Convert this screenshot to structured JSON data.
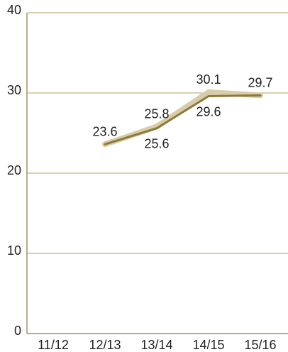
{
  "chart_data": {
    "type": "line",
    "categories": [
      "11/12",
      "12/13",
      "13/14",
      "14/15",
      "15/16"
    ],
    "ylim": [
      0,
      40
    ],
    "yticks": [
      0,
      10,
      20,
      30,
      40
    ],
    "grid": true,
    "legend": "none",
    "series": [
      {
        "values": [
          null,
          23.6,
          25.8,
          30.1,
          29.7
        ],
        "color": "#d9ccaa",
        "label_position": "above"
      },
      {
        "values": [
          null,
          23.6,
          25.6,
          29.6,
          29.7
        ],
        "color": "#8c7a3c",
        "label_position": "below"
      }
    ],
    "point_labels": [
      {
        "category": "12/13",
        "text": "23.6",
        "position": "above"
      },
      {
        "category": "13/14",
        "text": "25.8",
        "position": "above"
      },
      {
        "category": "13/14",
        "text": "25.6",
        "position": "below"
      },
      {
        "category": "14/15",
        "text": "30.1",
        "position": "above"
      },
      {
        "category": "14/15",
        "text": "29.6",
        "position": "below"
      },
      {
        "category": "15/16",
        "text": "29.7",
        "position": "above"
      }
    ],
    "colors": {
      "gridline": "#b3a35c",
      "axis": "#8c7a3c",
      "text": "#222222"
    }
  }
}
